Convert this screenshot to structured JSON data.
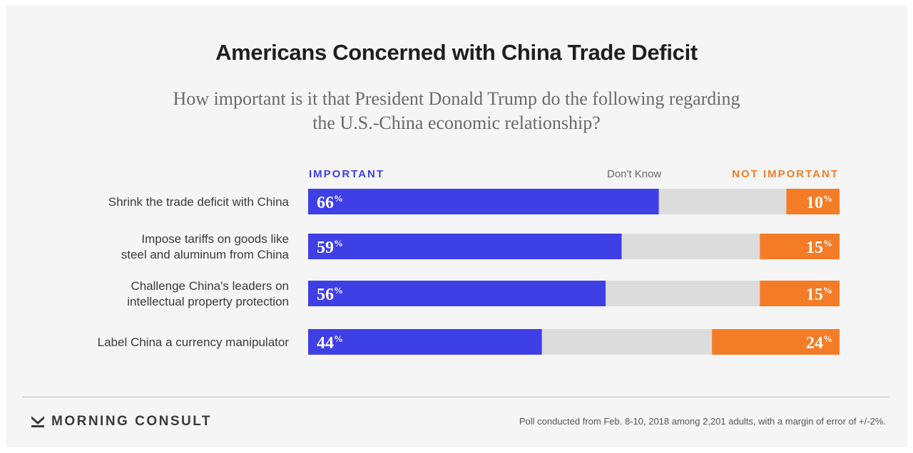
{
  "title": "Americans Concerned with China Trade Deficit",
  "subtitle": "How important is it that President Donald Trump do the following regarding the U.S.-China economic relationship?",
  "brand": {
    "name": "MORNING CONSULT",
    "logo_icon": "morning-consult-logo-icon"
  },
  "source_note": "Poll conducted from Feb. 8-10, 2018 among 2,201 adults, with a margin of error of +/-2%.",
  "colors": {
    "important": "#3f3fe6",
    "dont_know": "#dcdcdc",
    "not_important": "#f47c26"
  },
  "chart_data": {
    "type": "bar",
    "orientation": "horizontal",
    "stacked": true,
    "title": "Americans Concerned with China Trade Deficit",
    "subtitle": "How important is it that President Donald Trump do the following regarding the U.S.-China economic relationship?",
    "legend": [
      "IMPORTANT",
      "Don't Know",
      "NOT IMPORTANT"
    ],
    "legend_placement": "top",
    "grid": false,
    "xlim": [
      0,
      100
    ],
    "unit": "%",
    "categories": [
      [
        "Shrink the trade deficit with China"
      ],
      [
        "Impose tariffs on goods like",
        "steel and aluminum from China"
      ],
      [
        "Challenge China's leaders on",
        "intellectual property protection"
      ],
      [
        "Label China a currency manipulator"
      ]
    ],
    "series": [
      {
        "name": "IMPORTANT",
        "values": [
          66,
          59,
          56,
          44
        ]
      },
      {
        "name": "Don't Know",
        "values": [
          24,
          26,
          29,
          32
        ]
      },
      {
        "name": "NOT IMPORTANT",
        "values": [
          10,
          15,
          15,
          24
        ]
      }
    ]
  }
}
